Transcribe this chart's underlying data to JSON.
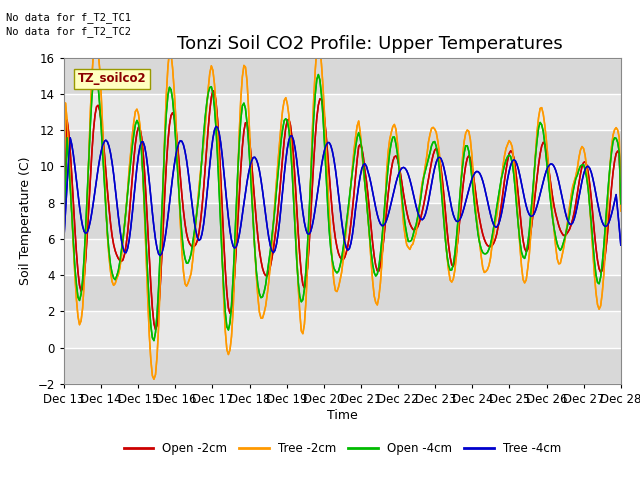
{
  "title": "Tonzi Soil CO2 Profile: Upper Temperatures",
  "ylabel": "Soil Temperature (C)",
  "xlabel": "Time",
  "top_note1": "No data for f_T2_TC1",
  "top_note2": "No data for f_T2_TC2",
  "legend_label": "TZ_soilco2",
  "series_labels": [
    "Open -2cm",
    "Tree -2cm",
    "Open -4cm",
    "Tree -4cm"
  ],
  "series_colors": [
    "#cc0000",
    "#ff9900",
    "#00bb00",
    "#0000cc"
  ],
  "ylim": [
    -2,
    16
  ],
  "yticks": [
    -2,
    0,
    2,
    4,
    6,
    8,
    10,
    12,
    14,
    16
  ],
  "xtick_labels": [
    "Dec 13",
    "Dec 14",
    "Dec 15",
    "Dec 16",
    "Dec 17",
    "Dec 18",
    "Dec 19",
    "Dec 20",
    "Dec 21",
    "Dec 22",
    "Dec 23",
    "Dec 24",
    "Dec 25",
    "Dec 26",
    "Dec 27",
    "Dec 28"
  ],
  "background_color": "#ffffff",
  "plot_bg_color": "#e8e8e8",
  "grid_color": "#ffffff",
  "title_fontsize": 13,
  "axis_fontsize": 9,
  "tick_fontsize": 8.5
}
